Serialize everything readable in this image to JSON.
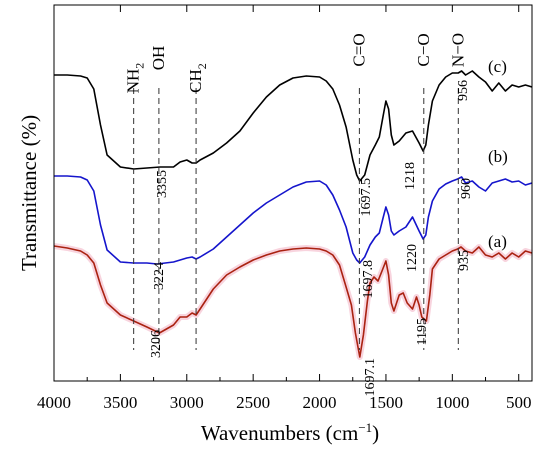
{
  "chart_data": {
    "type": "line",
    "title": "",
    "xlabel": "Wavenumbers (cm",
    "xlabel_sup": "−1",
    "xlabel_end": ")",
    "ylabel": "Transmittance (%)",
    "xlim": [
      4000,
      400
    ],
    "x_reversed": true,
    "y_ticks_shown": false,
    "grid": false,
    "x_ticks": [
      "4000",
      "3500",
      "3000",
      "2500",
      "2000",
      "1500",
      "1000",
      "500"
    ],
    "x_tick_values": [
      4000,
      3500,
      3000,
      2500,
      2000,
      1500,
      1000,
      500
    ],
    "series": [
      {
        "name": "(c)",
        "color": "#000000",
        "points": [
          [
            4000,
            70
          ],
          [
            3900,
            70
          ],
          [
            3800,
            71
          ],
          [
            3750,
            73
          ],
          [
            3700,
            84
          ],
          [
            3650,
            120
          ],
          [
            3600,
            150
          ],
          [
            3500,
            162
          ],
          [
            3400,
            164
          ],
          [
            3300,
            163
          ],
          [
            3200,
            162
          ],
          [
            3100,
            162
          ],
          [
            3050,
            157
          ],
          [
            3000,
            155
          ],
          [
            2960,
            158
          ],
          [
            2930,
            158
          ],
          [
            2900,
            155
          ],
          [
            2800,
            148
          ],
          [
            2700,
            138
          ],
          [
            2600,
            126
          ],
          [
            2500,
            108
          ],
          [
            2400,
            92
          ],
          [
            2300,
            80
          ],
          [
            2200,
            73
          ],
          [
            2100,
            71
          ],
          [
            2000,
            72
          ],
          [
            1950,
            76
          ],
          [
            1900,
            84
          ],
          [
            1850,
            100
          ],
          [
            1800,
            122
          ],
          [
            1750,
            155
          ],
          [
            1720,
            170
          ],
          [
            1697.5,
            176
          ],
          [
            1660,
            170
          ],
          [
            1620,
            150
          ],
          [
            1580,
            140
          ],
          [
            1550,
            132
          ],
          [
            1520,
            110
          ],
          [
            1500,
            96
          ],
          [
            1480,
            104
          ],
          [
            1460,
            130
          ],
          [
            1440,
            140
          ],
          [
            1400,
            136
          ],
          [
            1350,
            128
          ],
          [
            1300,
            126
          ],
          [
            1250,
            138
          ],
          [
            1220,
            146
          ],
          [
            1200,
            140
          ],
          [
            1180,
            120
          ],
          [
            1150,
            96
          ],
          [
            1100,
            80
          ],
          [
            1050,
            72
          ],
          [
            1000,
            68
          ],
          [
            956,
            68
          ],
          [
            930,
            66
          ],
          [
            900,
            70
          ],
          [
            850,
            66
          ],
          [
            800,
            72
          ],
          [
            750,
            77
          ],
          [
            700,
            86
          ],
          [
            650,
            78
          ],
          [
            600,
            86
          ],
          [
            550,
            80
          ],
          [
            500,
            82
          ],
          [
            450,
            80
          ],
          [
            400,
            82
          ]
        ]
      },
      {
        "name": "(b)",
        "color": "#1515cc",
        "points": [
          [
            4000,
            171
          ],
          [
            3900,
            171
          ],
          [
            3800,
            172
          ],
          [
            3750,
            175
          ],
          [
            3700,
            186
          ],
          [
            3650,
            220
          ],
          [
            3600,
            245
          ],
          [
            3500,
            257
          ],
          [
            3400,
            258
          ],
          [
            3300,
            258
          ],
          [
            3224,
            259
          ],
          [
            3100,
            257
          ],
          [
            3000,
            253
          ],
          [
            2960,
            252
          ],
          [
            2930,
            254
          ],
          [
            2900,
            252
          ],
          [
            2800,
            244
          ],
          [
            2700,
            232
          ],
          [
            2600,
            220
          ],
          [
            2500,
            208
          ],
          [
            2400,
            198
          ],
          [
            2300,
            190
          ],
          [
            2200,
            182
          ],
          [
            2100,
            177
          ],
          [
            2000,
            176
          ],
          [
            1950,
            180
          ],
          [
            1900,
            190
          ],
          [
            1850,
            205
          ],
          [
            1800,
            222
          ],
          [
            1750,
            248
          ],
          [
            1720,
            255
          ],
          [
            1697.8,
            258
          ],
          [
            1660,
            252
          ],
          [
            1620,
            240
          ],
          [
            1580,
            232
          ],
          [
            1550,
            228
          ],
          [
            1520,
            212
          ],
          [
            1500,
            202
          ],
          [
            1480,
            210
          ],
          [
            1460,
            226
          ],
          [
            1440,
            230
          ],
          [
            1400,
            226
          ],
          [
            1350,
            222
          ],
          [
            1300,
            212
          ],
          [
            1250,
            226
          ],
          [
            1220,
            234
          ],
          [
            1200,
            230
          ],
          [
            1180,
            212
          ],
          [
            1150,
            196
          ],
          [
            1100,
            184
          ],
          [
            1050,
            179
          ],
          [
            1000,
            176
          ],
          [
            960,
            174
          ],
          [
            930,
            172
          ],
          [
            900,
            178
          ],
          [
            850,
            176
          ],
          [
            800,
            182
          ],
          [
            750,
            186
          ],
          [
            700,
            178
          ],
          [
            650,
            176
          ],
          [
            600,
            174
          ],
          [
            550,
            177
          ],
          [
            500,
            176
          ],
          [
            450,
            180
          ],
          [
            400,
            178
          ]
        ]
      },
      {
        "name": "(a)",
        "color": "#aa2211",
        "points": [
          [
            4000,
            241
          ],
          [
            3900,
            243
          ],
          [
            3800,
            246
          ],
          [
            3750,
            250
          ],
          [
            3700,
            258
          ],
          [
            3650,
            280
          ],
          [
            3600,
            298
          ],
          [
            3500,
            310
          ],
          [
            3400,
            316
          ],
          [
            3300,
            322
          ],
          [
            3206,
            328
          ],
          [
            3100,
            320
          ],
          [
            3050,
            312
          ],
          [
            3000,
            312
          ],
          [
            2960,
            308
          ],
          [
            2930,
            310
          ],
          [
            2900,
            304
          ],
          [
            2800,
            284
          ],
          [
            2700,
            270
          ],
          [
            2600,
            262
          ],
          [
            2500,
            255
          ],
          [
            2400,
            250
          ],
          [
            2300,
            246
          ],
          [
            2200,
            244
          ],
          [
            2100,
            243
          ],
          [
            2000,
            244
          ],
          [
            1950,
            246
          ],
          [
            1900,
            250
          ],
          [
            1850,
            260
          ],
          [
            1800,
            282
          ],
          [
            1760,
            300
          ],
          [
            1730,
            328
          ],
          [
            1697.1,
            352
          ],
          [
            1670,
            330
          ],
          [
            1640,
            296
          ],
          [
            1620,
            278
          ],
          [
            1590,
            272
          ],
          [
            1560,
            276
          ],
          [
            1530,
            266
          ],
          [
            1500,
            256
          ],
          [
            1480,
            270
          ],
          [
            1460,
            298
          ],
          [
            1440,
            306
          ],
          [
            1400,
            290
          ],
          [
            1370,
            288
          ],
          [
            1340,
            298
          ],
          [
            1300,
            304
          ],
          [
            1270,
            292
          ],
          [
            1250,
            300
          ],
          [
            1230,
            312
          ],
          [
            1195,
            316
          ],
          [
            1170,
            290
          ],
          [
            1150,
            264
          ],
          [
            1100,
            254
          ],
          [
            1050,
            250
          ],
          [
            1000,
            246
          ],
          [
            960,
            244
          ],
          [
            935,
            242
          ],
          [
            900,
            246
          ],
          [
            850,
            248
          ],
          [
            800,
            242
          ],
          [
            750,
            250
          ],
          [
            700,
            252
          ],
          [
            650,
            248
          ],
          [
            600,
            254
          ],
          [
            550,
            248
          ],
          [
            500,
            252
          ],
          [
            450,
            246
          ],
          [
            400,
            248
          ]
        ]
      }
    ],
    "series_labels": [
      "(c)",
      "(b)",
      "(a)"
    ],
    "group_labels": [
      {
        "text": "NH",
        "sub": "2",
        "x": 3400
      },
      {
        "text": "OH",
        "sub": "",
        "x": 3210
      },
      {
        "text": "CH",
        "sub": "2",
        "x": 2930
      },
      {
        "text": "C=O",
        "sub": "",
        "x": 1700
      },
      {
        "text": "C−O",
        "sub": "",
        "x": 1215
      },
      {
        "text": "N−O",
        "sub": "",
        "x": 955
      }
    ],
    "peak_labels": [
      {
        "text": "3355",
        "x": 3355
      },
      {
        "text": "1697.5",
        "x": 1697.5
      },
      {
        "text": "1218",
        "x": 1218
      },
      {
        "text": "956",
        "x": 956
      },
      {
        "text": "960",
        "x": 960
      },
      {
        "text": "3224",
        "x": 3224
      },
      {
        "text": "1697.8",
        "x": 1697.8
      },
      {
        "text": "1220",
        "x": 1220
      },
      {
        "text": "935",
        "x": 935
      },
      {
        "text": "3206",
        "x": 3206
      },
      {
        "text": "1697.1",
        "x": 1697.1
      },
      {
        "text": "1195",
        "x": 1195
      }
    ]
  }
}
